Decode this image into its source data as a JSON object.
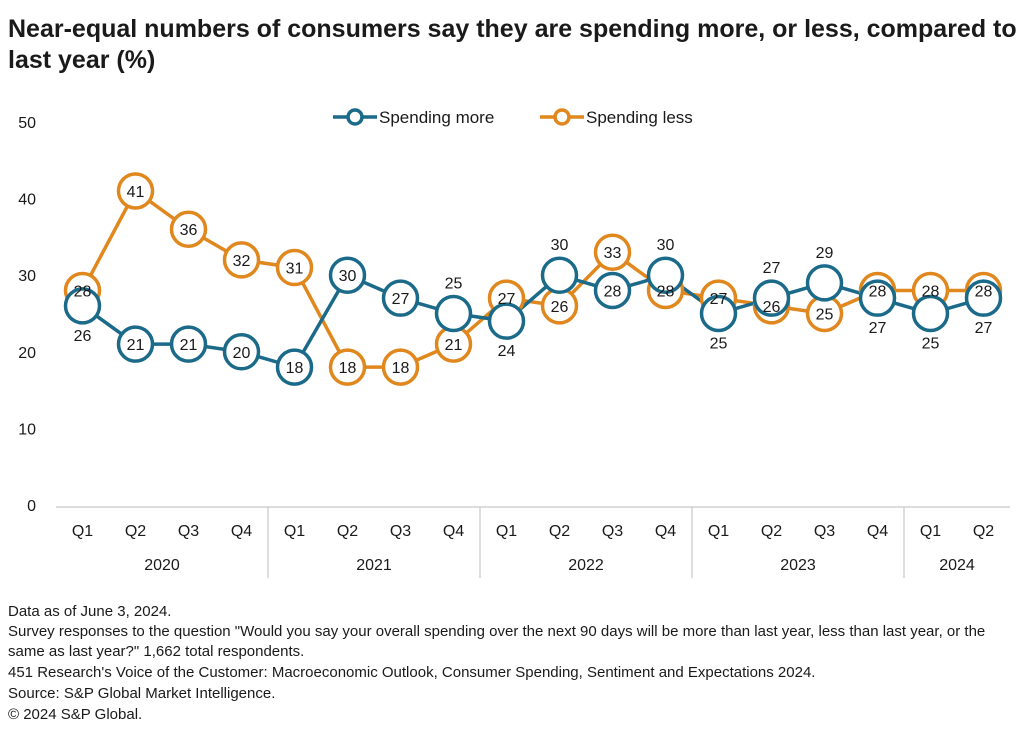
{
  "title": "Near-equal numbers of consumers say they are spending more, or less, compared to last year (%)",
  "chart_data": {
    "type": "line",
    "title": "Near-equal numbers of consumers say they are spending more, or less, compared to last year (%)",
    "categories": [
      "Q1",
      "Q2",
      "Q3",
      "Q4",
      "Q1",
      "Q2",
      "Q3",
      "Q4",
      "Q1",
      "Q2",
      "Q3",
      "Q4",
      "Q1",
      "Q2",
      "Q3",
      "Q4",
      "Q1",
      "Q2"
    ],
    "groups": [
      {
        "label": "2020",
        "count": 4
      },
      {
        "label": "2021",
        "count": 4
      },
      {
        "label": "2022",
        "count": 4
      },
      {
        "label": "2023",
        "count": 4
      },
      {
        "label": "2024",
        "count": 2
      }
    ],
    "series": [
      {
        "name": "Spending more",
        "color": "#1b6a8a",
        "values": [
          26,
          21,
          21,
          20,
          18,
          30,
          27,
          25,
          24,
          30,
          28,
          30,
          25,
          27,
          29,
          27,
          25,
          27
        ]
      },
      {
        "name": "Spending less",
        "color": "#e0871d",
        "values": [
          28,
          41,
          36,
          32,
          31,
          18,
          18,
          21,
          27,
          26,
          33,
          28,
          27,
          26,
          25,
          28,
          28,
          28
        ]
      }
    ],
    "ylim": [
      0,
      50
    ],
    "yticks": [
      0,
      10,
      20,
      30,
      40,
      50
    ],
    "grid": false,
    "legend_position": "top-center"
  },
  "notes": {
    "data_as_of": "Data as of June 3, 2024.",
    "survey": "Survey responses to the question \"Would you say your overall spending over the next 90 days will be more than last year, less than last year, or the same as last year?\" 1,662 total respondents.",
    "publication": "451 Research's Voice of the Customer: Macroeconomic Outlook, Consumer Spending, Sentiment and Expectations 2024.",
    "source": "Source: S&P Global Market Intelligence.",
    "copyright": "© 2024 S&P Global."
  }
}
